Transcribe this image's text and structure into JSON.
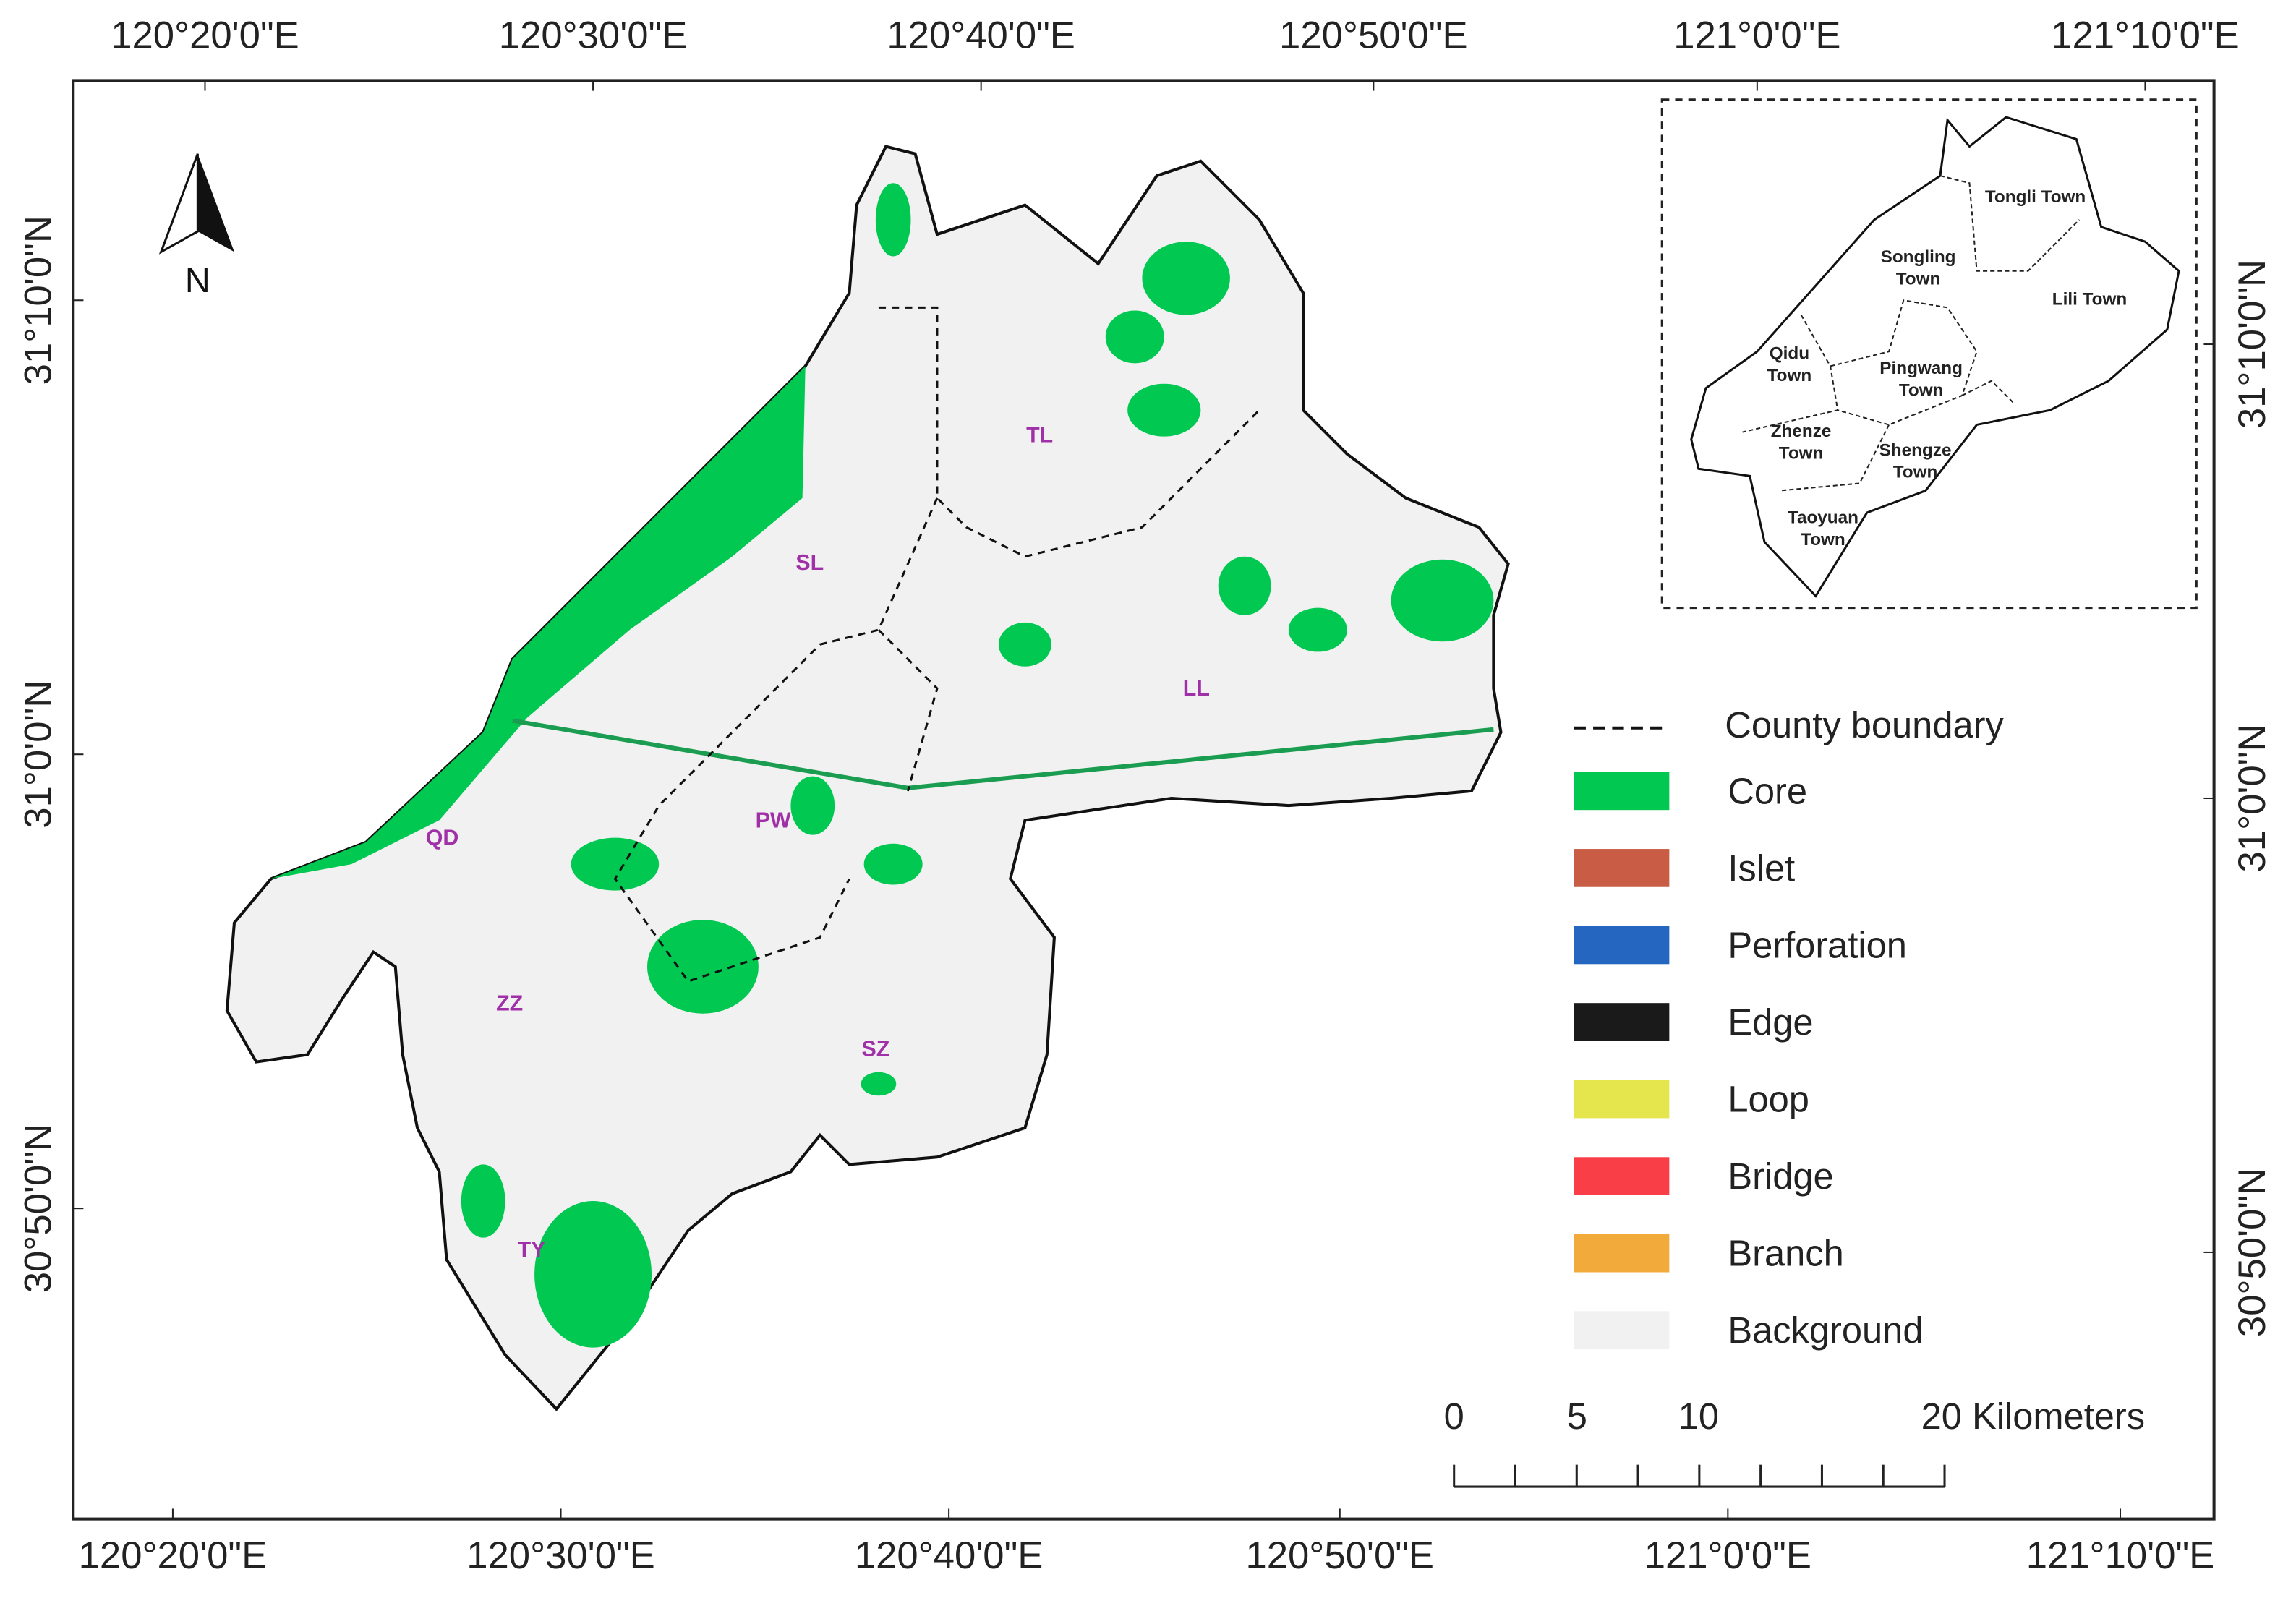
{
  "graticule": {
    "top": [
      "120°20'0\"E",
      "120°30'0\"E",
      "120°40'0\"E",
      "120°50'0\"E",
      "121°0'0\"E",
      "121°10'0\"E"
    ],
    "bottom": [
      "120°20'0\"E",
      "120°30'0\"E",
      "120°40'0\"E",
      "120°50'0\"E",
      "121°0'0\"E",
      "121°10'0\"E"
    ],
    "left": [
      "31°10'0\"N",
      "31°0'0\"N",
      "30°50'0\"N"
    ],
    "right": [
      "31°10'0\"N",
      "31°0'0\"N",
      "30°50'0\"N"
    ]
  },
  "north": "N",
  "towns": [
    "TL",
    "SL",
    "LL",
    "QD",
    "PW",
    "ZZ",
    "SZ",
    "TY"
  ],
  "inset": {
    "towns": [
      [
        "Tongli Town"
      ],
      [
        "Songling",
        "Town"
      ],
      [
        "Lili Town"
      ],
      [
        "Qidu",
        "Town"
      ],
      [
        "Pingwang",
        "Town"
      ],
      [
        "Zhenze",
        "Town"
      ],
      [
        "Shengze",
        "Town"
      ],
      [
        "Taoyuan",
        "Town"
      ]
    ]
  },
  "legend": {
    "boundary": "County boundary",
    "items": [
      {
        "name": "Core",
        "color": "#00c850"
      },
      {
        "name": "Islet",
        "color": "#c95c44"
      },
      {
        "name": "Perforation",
        "color": "#2466c0"
      },
      {
        "name": "Edge",
        "color": "#1a1a1a"
      },
      {
        "name": "Loop",
        "color": "#e5e64d"
      },
      {
        "name": "Bridge",
        "color": "#fa3e48"
      },
      {
        "name": "Branch",
        "color": "#f2aa3a"
      },
      {
        "name": "Background",
        "color": "#f1f1f1"
      }
    ]
  },
  "scale_bar": {
    "labels": [
      "0",
      "5",
      "10",
      "20 Kilometers"
    ]
  }
}
